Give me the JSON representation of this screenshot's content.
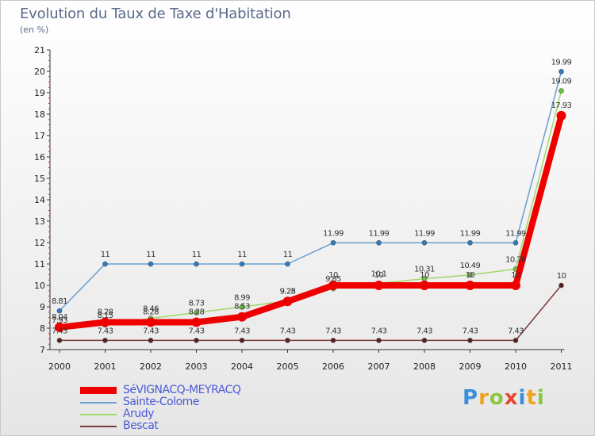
{
  "title": "Evolution du Taux de Taxe d'Habitation",
  "subtitle": "(en %)",
  "logo": {
    "letters": [
      {
        "char": "P",
        "color": "#3a8fd8"
      },
      {
        "char": "r",
        "color": "#f0a21c"
      },
      {
        "char": "o",
        "color": "#8cc63f"
      },
      {
        "char": "x",
        "color": "#e8452c"
      },
      {
        "char": "i",
        "color": "#3a8fd8"
      },
      {
        "char": "t",
        "color": "#f0a21c"
      },
      {
        "char": "i",
        "color": "#8cc63f"
      }
    ]
  },
  "chart_data": {
    "type": "line",
    "title": "Evolution du Taux de Taxe d'Habitation",
    "ylabel": "(en %)",
    "xlabel": "",
    "ylim": [
      7,
      21
    ],
    "yticks": [
      7,
      8,
      9,
      10,
      11,
      12,
      13,
      14,
      15,
      16,
      17,
      18,
      19,
      20,
      21
    ],
    "grid": false,
    "legend_position": "bottom-left",
    "categories": [
      "2000",
      "2001",
      "2002",
      "2003",
      "2004",
      "2005",
      "2006",
      "2007",
      "2008",
      "2009",
      "2010",
      "2011"
    ],
    "series": [
      {
        "name": "Sainte-Colome",
        "color": "#6a9fd0",
        "marker_color": "#2e7bc4",
        "values": [
          8.81,
          11,
          11,
          11,
          11,
          11,
          11.99,
          11.99,
          11.99,
          11.99,
          11.99,
          19.99
        ],
        "labels": [
          "8.81",
          "11",
          "11",
          "11",
          "11",
          "11",
          "11.99",
          "11.99",
          "11.99",
          "11.99",
          "11.99",
          "19.99"
        ]
      },
      {
        "name": "Bescat",
        "color": "#7a3a3a",
        "marker_color": "#5a1e1e",
        "values": [
          7.43,
          7.43,
          7.43,
          7.43,
          7.43,
          7.43,
          7.43,
          7.43,
          7.43,
          7.43,
          7.43,
          10
        ],
        "labels": [
          "7.43",
          "7.43",
          "7.43",
          "7.43",
          "7.43",
          "7.43",
          "7.43",
          "7.43",
          "7.43",
          "7.43",
          "7.43",
          "10"
        ]
      },
      {
        "name": "Arudy",
        "color": "#9fd86a",
        "marker_color": "#6cc43a",
        "values": [
          7.93,
          8.15,
          8.46,
          8.73,
          8.99,
          9.28,
          9.85,
          10.1,
          10.31,
          10.49,
          10.76,
          19.09
        ],
        "labels": [
          "7.93",
          "8.15",
          "8.46",
          "8.73",
          "8.99",
          "9.28",
          "9.85",
          "10.1",
          "10.31",
          "10.49",
          "10.76",
          "19.09"
        ]
      },
      {
        "name": "SéVIGNACQ-MEYRACQ",
        "color": "#ee0000",
        "marker_color": "#ee0000",
        "values": [
          8.04,
          8.28,
          8.28,
          8.28,
          8.53,
          9.25,
          10,
          10,
          10,
          10,
          10,
          17.93
        ],
        "labels": [
          "8.04",
          "8.28",
          "8.28",
          "8.28",
          "8.53",
          "9.25",
          "10",
          "10",
          "10",
          "10",
          "10",
          "17.93"
        ]
      }
    ],
    "legend_order": [
      "SéVIGNACQ-MEYRACQ",
      "Sainte-Colome",
      "Arudy",
      "Bescat"
    ]
  }
}
